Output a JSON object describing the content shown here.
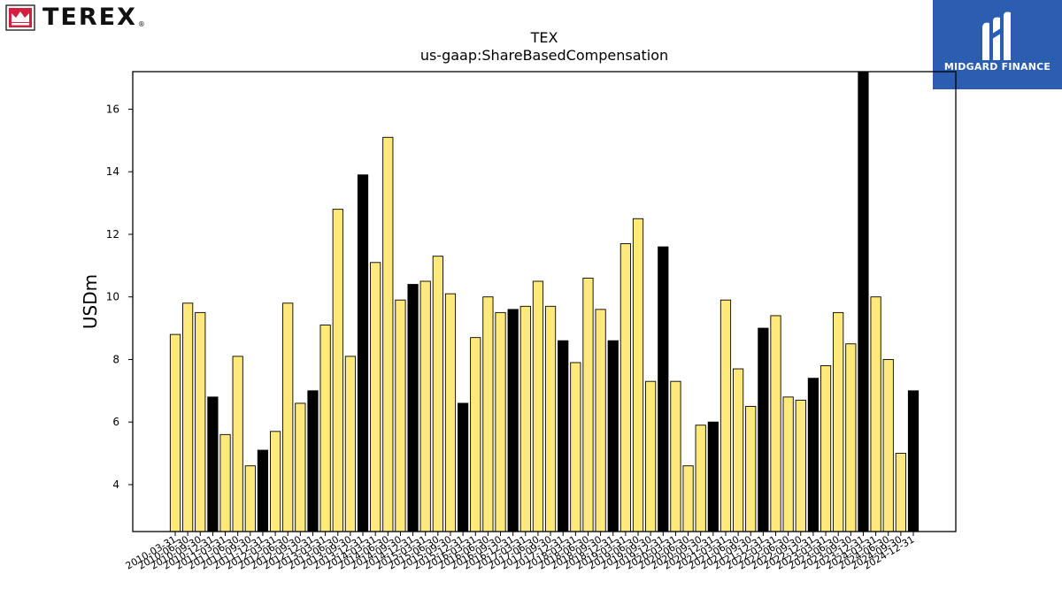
{
  "brand": {
    "name": "TEREX",
    "reg": "®"
  },
  "badge": {
    "text": "MIDGARD FINANCE"
  },
  "colors": {
    "bar_normal": "#ffe97a",
    "bar_highlight": "#000000",
    "bar_edge": "#000000",
    "badge_bg": "#2b5db0",
    "brand_red": "#d4203c"
  },
  "chart_data": {
    "type": "bar",
    "title": "TEX",
    "subtitle": "us-gaap:ShareBasedCompensation",
    "ylabel": "USDm",
    "xlabel": "",
    "ylim": [
      2.5,
      17.2
    ],
    "yticks": [
      4,
      6,
      8,
      10,
      12,
      14,
      16
    ],
    "grid": false,
    "legend": "none",
    "categories": [
      "2010-03-31",
      "2010-06-30",
      "2010-09-30",
      "2010-12-31",
      "2011-03-31",
      "2011-06-30",
      "2011-09-30",
      "2011-12-31",
      "2012-03-31",
      "2012-06-30",
      "2012-09-30",
      "2012-12-31",
      "2013-03-31",
      "2013-06-30",
      "2013-09-30",
      "2013-12-31",
      "2014-03-31",
      "2014-06-30",
      "2014-09-30",
      "2014-12-31",
      "2015-03-31",
      "2015-06-30",
      "2015-09-30",
      "2015-12-31",
      "2016-03-31",
      "2016-06-30",
      "2016-09-30",
      "2016-12-31",
      "2017-03-31",
      "2017-06-30",
      "2017-09-30",
      "2017-12-31",
      "2018-03-31",
      "2018-06-30",
      "2018-09-30",
      "2018-12-31",
      "2019-03-31",
      "2019-06-30",
      "2019-09-30",
      "2019-12-31",
      "2020-03-31",
      "2020-06-30",
      "2020-09-30",
      "2020-12-31",
      "2021-03-31",
      "2021-06-30",
      "2021-09-30",
      "2021-12-31",
      "2022-03-31",
      "2022-06-30",
      "2022-09-30",
      "2022-12-31",
      "2023-03-31",
      "2023-06-30",
      "2023-09-30",
      "2023-12-31",
      "2024-03-31",
      "2024-06-30",
      "2024-09-30",
      "2024-12-31"
    ],
    "values": [
      8.8,
      9.8,
      9.5,
      6.8,
      5.6,
      8.1,
      4.6,
      5.1,
      5.7,
      9.8,
      6.6,
      7.0,
      9.1,
      12.8,
      8.1,
      13.9,
      11.1,
      15.1,
      9.9,
      10.4,
      10.5,
      11.3,
      10.1,
      6.6,
      8.7,
      10.0,
      9.5,
      9.6,
      9.7,
      10.5,
      9.7,
      8.6,
      7.9,
      10.6,
      9.6,
      8.6,
      11.7,
      12.5,
      7.3,
      11.6,
      7.3,
      4.6,
      5.9,
      6.0,
      9.9,
      7.7,
      6.5,
      9.0,
      9.4,
      6.8,
      6.7,
      7.4,
      7.8,
      9.5,
      8.5,
      17.3,
      10.0,
      8.0,
      5.0,
      7.0
    ],
    "highlight": [
      false,
      false,
      false,
      true,
      false,
      false,
      false,
      true,
      false,
      false,
      false,
      true,
      false,
      false,
      false,
      true,
      false,
      false,
      false,
      true,
      false,
      false,
      false,
      true,
      false,
      false,
      false,
      true,
      false,
      false,
      false,
      true,
      false,
      false,
      false,
      true,
      false,
      false,
      false,
      true,
      false,
      false,
      false,
      true,
      false,
      false,
      false,
      true,
      false,
      false,
      false,
      true,
      false,
      false,
      false,
      true,
      false,
      false,
      false,
      true
    ]
  }
}
